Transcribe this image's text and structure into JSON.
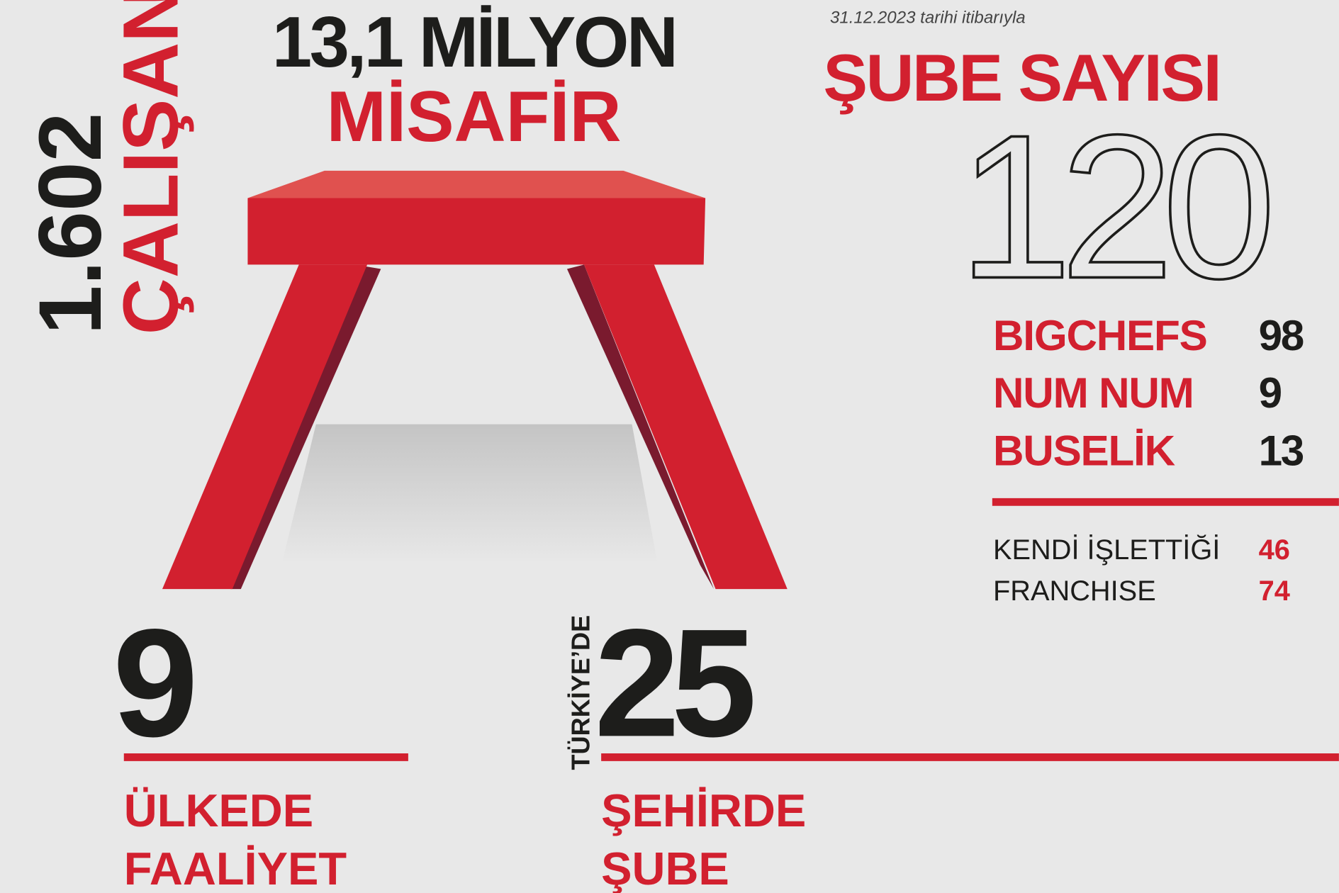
{
  "employees": {
    "value": "1.602",
    "label": "ÇALIŞAN"
  },
  "guests": {
    "value": "13,1 MİLYON",
    "label": "MİSAFİR"
  },
  "branches": {
    "date_note": "31.12.2023 tarihi itibarıyla",
    "title": "ŞUBE SAYISI",
    "total": "120",
    "brands": [
      {
        "name": "BIGCHEFS",
        "count": "98"
      },
      {
        "name": "NUM NUM",
        "count": "9"
      },
      {
        "name": "BUSELİK",
        "count": "13"
      }
    ],
    "ownership": [
      {
        "name": "KENDİ İŞLETTİĞİ",
        "count": "46"
      },
      {
        "name": "FRANCHISE",
        "count": "74"
      }
    ]
  },
  "countries": {
    "value": "9",
    "lines": [
      "ÜLKEDE",
      "FAALİYET"
    ]
  },
  "cities": {
    "prefix": "TÜRKİYE’DE",
    "value": "25",
    "lines": [
      "ŞEHİRDE",
      "ŞUBE"
    ]
  }
}
